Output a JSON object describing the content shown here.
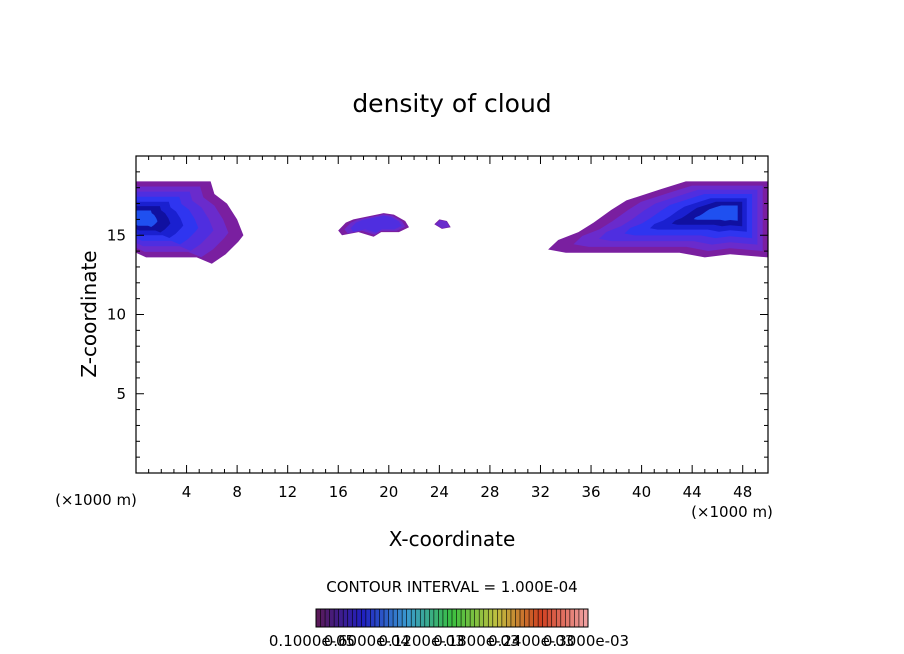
{
  "chart_data": {
    "type": "heatmap",
    "title": "density of cloud",
    "xlabel": "X-coordinate",
    "ylabel": "Z-coordinate",
    "x_unit_left": "(×1000 m)",
    "x_unit_right": "(×1000 m)",
    "xlim": [
      0,
      50
    ],
    "ylim": [
      0,
      20
    ],
    "x_ticks": [
      4,
      8,
      12,
      16,
      20,
      24,
      28,
      32,
      36,
      40,
      44,
      48
    ],
    "y_ticks": [
      5,
      10,
      15
    ],
    "x_tick_labels": [
      "4",
      "8",
      "12",
      "16",
      "20",
      "24",
      "28",
      "32",
      "36",
      "40",
      "44",
      "48"
    ],
    "y_tick_labels": [
      "5",
      "10",
      "15"
    ],
    "contour_interval_text": "CONTOUR INTERVAL = 1.000E-04",
    "colorbar_labels": [
      "0.1000e-05",
      "0.6000e-04",
      "0.1200e-03",
      "0.1800e-03",
      "0.2400e-03",
      "0.3000e-03"
    ],
    "colorbar_colors": [
      "#5a1a5a",
      "#2020c0",
      "#3a9ad0",
      "#3ac040",
      "#c0c040",
      "#d04020",
      "#f0a0a0"
    ],
    "level_colors": [
      "#7a1fa0",
      "#6a2bcc",
      "#4f2ee0",
      "#2f35f0",
      "#1a20d0",
      "#1010a0",
      "#1f50f0",
      "#3a80ff"
    ],
    "regions": [
      {
        "name": "left-cloud",
        "outline": [
          [
            0,
            18.4
          ],
          [
            5.9,
            18.4
          ],
          [
            6.2,
            17.6
          ],
          [
            7.2,
            17.0
          ],
          [
            8.0,
            16.0
          ],
          [
            8.5,
            15.0
          ],
          [
            8.1,
            14.6
          ],
          [
            7.1,
            13.8
          ],
          [
            6.0,
            13.2
          ],
          [
            4.8,
            13.6
          ],
          [
            3.0,
            13.6
          ],
          [
            0.8,
            13.6
          ],
          [
            0,
            13.9
          ]
        ],
        "core": [
          0,
          16.1
        ],
        "levels": [
          0.5,
          0.7,
          0.9,
          1.05,
          1.15,
          1.25
        ]
      },
      {
        "name": "middle-cloud-1",
        "outline": [
          [
            16.0,
            15.3
          ],
          [
            16.6,
            15.8
          ],
          [
            17.2,
            16.0
          ],
          [
            18.4,
            16.2
          ],
          [
            19.6,
            16.4
          ],
          [
            20.4,
            16.3
          ],
          [
            21.3,
            15.9
          ],
          [
            21.6,
            15.5
          ],
          [
            20.8,
            15.2
          ],
          [
            19.4,
            15.2
          ],
          [
            18.8,
            14.9
          ],
          [
            17.6,
            15.2
          ],
          [
            16.3,
            15.0
          ]
        ],
        "core": [
          19.5,
          15.8
        ],
        "levels": [
          0.5,
          0.7
        ]
      },
      {
        "name": "middle-cloud-2",
        "outline": [
          [
            23.6,
            15.7
          ],
          [
            24.0,
            16.0
          ],
          [
            24.6,
            15.9
          ],
          [
            24.9,
            15.5
          ],
          [
            24.2,
            15.4
          ]
        ],
        "core": [
          24.3,
          15.7
        ],
        "levels": [
          0.5
        ]
      },
      {
        "name": "right-cloud",
        "outline": [
          [
            32.6,
            14.1
          ],
          [
            33.4,
            14.7
          ],
          [
            35.0,
            15.2
          ],
          [
            36.2,
            15.8
          ],
          [
            37.6,
            16.6
          ],
          [
            38.8,
            17.2
          ],
          [
            41.5,
            17.9
          ],
          [
            43.5,
            18.4
          ],
          [
            50,
            18.4
          ],
          [
            50,
            13.6
          ],
          [
            47.0,
            13.8
          ],
          [
            45.0,
            13.6
          ],
          [
            43.0,
            13.9
          ],
          [
            39.0,
            13.9
          ],
          [
            34.0,
            13.9
          ]
        ],
        "core": [
          47.0,
          16.5
        ],
        "levels": [
          0.5,
          0.7,
          0.9,
          1.05,
          1.15,
          1.25
        ]
      }
    ],
    "grid": false,
    "legend": "bottom"
  }
}
